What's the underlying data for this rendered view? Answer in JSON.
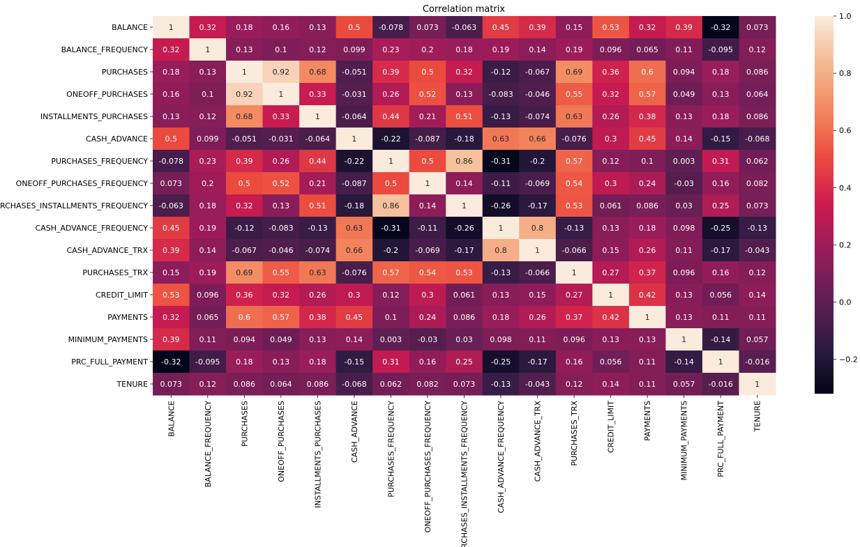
{
  "chart_data": {
    "type": "heatmap",
    "title": "Correlation matrix",
    "labels": [
      "BALANCE",
      "BALANCE_FREQUENCY",
      "PURCHASES",
      "ONEOFF_PURCHASES",
      "INSTALLMENTS_PURCHASES",
      "CASH_ADVANCE",
      "PURCHASES_FREQUENCY",
      "ONEOFF_PURCHASES_FREQUENCY",
      "PURCHASES_INSTALLMENTS_FREQUENCY",
      "CASH_ADVANCE_FREQUENCY",
      "CASH_ADVANCE_TRX",
      "PURCHASES_TRX",
      "CREDIT_LIMIT",
      "PAYMENTS",
      "MINIMUM_PAYMENTS",
      "PRC_FULL_PAYMENT",
      "TENURE"
    ],
    "matrix": [
      [
        "1",
        "0.32",
        "0.18",
        "0.16",
        "0.13",
        "0.5",
        "-0.078",
        "0.073",
        "-0.063",
        "0.45",
        "0.39",
        "0.15",
        "0.53",
        "0.32",
        "0.39",
        "-0.32",
        "0.073"
      ],
      [
        "0.32",
        "1",
        "0.13",
        "0.1",
        "0.12",
        "0.099",
        "0.23",
        "0.2",
        "0.18",
        "0.19",
        "0.14",
        "0.19",
        "0.096",
        "0.065",
        "0.11",
        "-0.095",
        "0.12"
      ],
      [
        "0.18",
        "0.13",
        "1",
        "0.92",
        "0.68",
        "-0.051",
        "0.39",
        "0.5",
        "0.32",
        "-0.12",
        "-0.067",
        "0.69",
        "0.36",
        "0.6",
        "0.094",
        "0.18",
        "0.086"
      ],
      [
        "0.16",
        "0.1",
        "0.92",
        "1",
        "0.33",
        "-0.031",
        "0.26",
        "0.52",
        "0.13",
        "-0.083",
        "-0.046",
        "0.55",
        "0.32",
        "0.57",
        "0.049",
        "0.13",
        "0.064"
      ],
      [
        "0.13",
        "0.12",
        "0.68",
        "0.33",
        "1",
        "-0.064",
        "0.44",
        "0.21",
        "0.51",
        "-0.13",
        "-0.074",
        "0.63",
        "0.26",
        "0.38",
        "0.13",
        "0.18",
        "0.086"
      ],
      [
        "0.5",
        "0.099",
        "-0.051",
        "-0.031",
        "-0.064",
        "1",
        "-0.22",
        "-0.087",
        "-0.18",
        "0.63",
        "0.66",
        "-0.076",
        "0.3",
        "0.45",
        "0.14",
        "-0.15",
        "-0.068"
      ],
      [
        "-0.078",
        "0.23",
        "0.39",
        "0.26",
        "0.44",
        "-0.22",
        "1",
        "0.5",
        "0.86",
        "-0.31",
        "-0.2",
        "0.57",
        "0.12",
        "0.1",
        "0.003",
        "0.31",
        "0.062"
      ],
      [
        "0.073",
        "0.2",
        "0.5",
        "0.52",
        "0.21",
        "-0.087",
        "0.5",
        "1",
        "0.14",
        "-0.11",
        "-0.069",
        "0.54",
        "0.3",
        "0.24",
        "-0.03",
        "0.16",
        "0.082"
      ],
      [
        "-0.063",
        "0.18",
        "0.32",
        "0.13",
        "0.51",
        "-0.18",
        "0.86",
        "0.14",
        "1",
        "-0.26",
        "-0.17",
        "0.53",
        "0.061",
        "0.086",
        "0.03",
        "0.25",
        "0.073"
      ],
      [
        "0.45",
        "0.19",
        "-0.12",
        "-0.083",
        "-0.13",
        "0.63",
        "-0.31",
        "-0.11",
        "-0.26",
        "1",
        "0.8",
        "-0.13",
        "0.13",
        "0.18",
        "0.098",
        "-0.25",
        "-0.13"
      ],
      [
        "0.39",
        "0.14",
        "-0.067",
        "-0.046",
        "-0.074",
        "0.66",
        "-0.2",
        "-0.069",
        "-0.17",
        "0.8",
        "1",
        "-0.066",
        "0.15",
        "0.26",
        "0.11",
        "-0.17",
        "-0.043"
      ],
      [
        "0.15",
        "0.19",
        "0.69",
        "0.55",
        "0.63",
        "-0.076",
        "0.57",
        "0.54",
        "0.53",
        "-0.13",
        "-0.066",
        "1",
        "0.27",
        "0.37",
        "0.096",
        "0.16",
        "0.12"
      ],
      [
        "0.53",
        "0.096",
        "0.36",
        "0.32",
        "0.26",
        "0.3",
        "0.12",
        "0.3",
        "0.061",
        "0.13",
        "0.15",
        "0.27",
        "1",
        "0.42",
        "0.13",
        "0.056",
        "0.14"
      ],
      [
        "0.32",
        "0.065",
        "0.6",
        "0.57",
        "0.38",
        "0.45",
        "0.1",
        "0.24",
        "0.086",
        "0.18",
        "0.26",
        "0.37",
        "0.42",
        "1",
        "0.13",
        "0.11",
        "0.11"
      ],
      [
        "0.39",
        "0.11",
        "0.094",
        "0.049",
        "0.13",
        "0.14",
        "0.003",
        "-0.03",
        "0.03",
        "0.098",
        "0.11",
        "0.096",
        "0.13",
        "0.13",
        "1",
        "-0.14",
        "0.057"
      ],
      [
        "-0.32",
        "-0.095",
        "0.18",
        "0.13",
        "0.18",
        "-0.15",
        "0.31",
        "0.16",
        "0.25",
        "-0.25",
        "-0.17",
        "0.16",
        "0.056",
        "0.11",
        "-0.14",
        "1",
        "-0.016"
      ],
      [
        "0.073",
        "0.12",
        "0.086",
        "0.064",
        "0.086",
        "-0.068",
        "0.062",
        "0.082",
        "0.073",
        "-0.13",
        "-0.043",
        "0.12",
        "0.14",
        "0.11",
        "0.057",
        "-0.016",
        "1"
      ]
    ],
    "vmin": -0.32,
    "vmax": 1.0,
    "colorbar_ticks": [
      "1.0",
      "0.8",
      "0.6",
      "0.4",
      "0.2",
      "0.0",
      "−0.2"
    ],
    "colormap": "rocket",
    "colormap_stops": [
      "#03051A",
      "#2F1B42",
      "#611F53",
      "#971C5B",
      "#CB1B4F",
      "#EC4B3E",
      "#F3875E",
      "#F5B992",
      "#FAEBDD"
    ]
  }
}
